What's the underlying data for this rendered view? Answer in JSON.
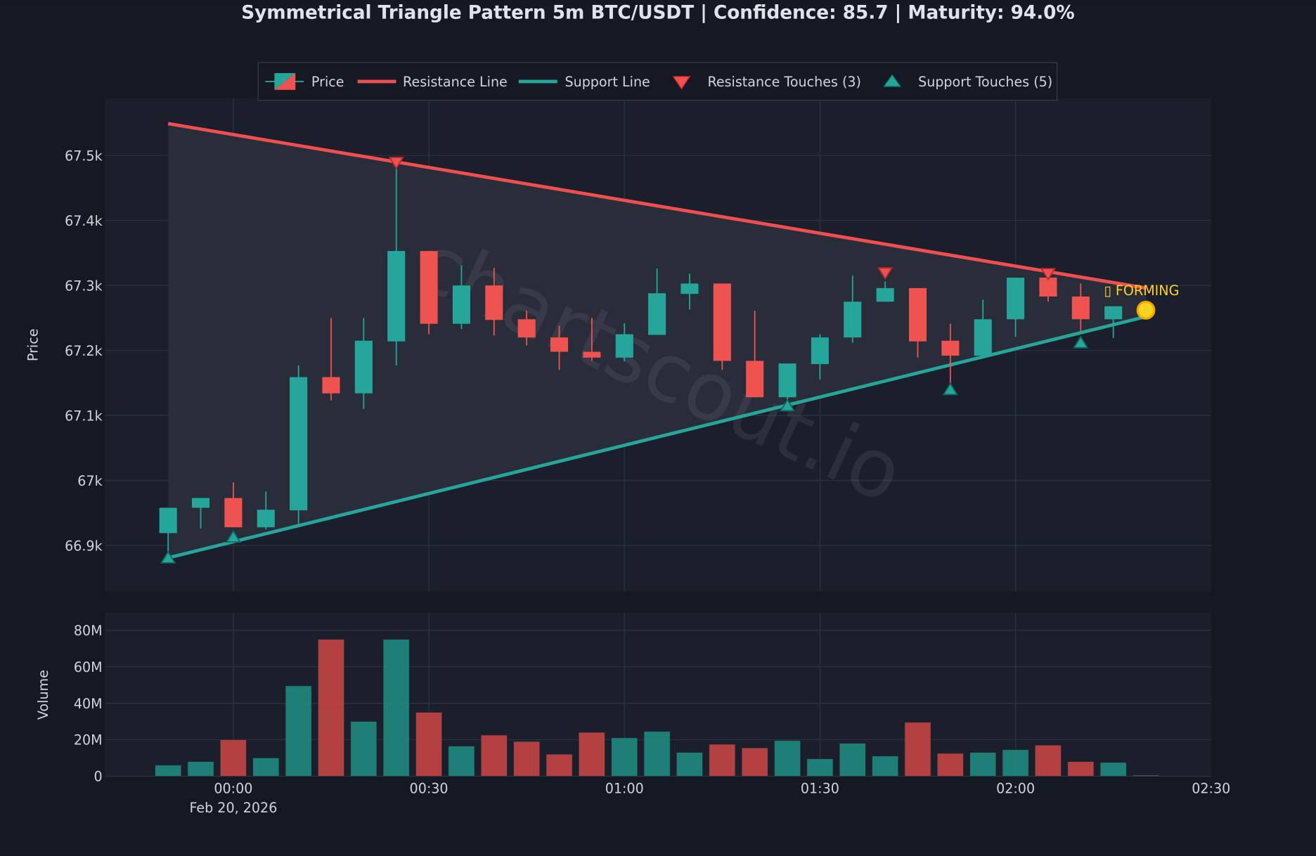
{
  "chart_data": {
    "type": "candlestick",
    "title": "Symmetrical Triangle Pattern 5m BTC/USDT | Confidence: 85.7 | Maturity: 94.0%",
    "ylabel": "Price",
    "ylabel_volume": "Volume",
    "x_ticks": [
      "00:00",
      "00:30",
      "01:00",
      "01:30",
      "02:00",
      "02:30"
    ],
    "x_date_label": "Feb 20, 2026",
    "y_ticks": [
      {
        "v": 66.9,
        "label": "66.9k"
      },
      {
        "v": 67.0,
        "label": "67k"
      },
      {
        "v": 67.1,
        "label": "67.1k"
      },
      {
        "v": 67.2,
        "label": "67.2k"
      },
      {
        "v": 67.3,
        "label": "67.3k"
      },
      {
        "v": 67.4,
        "label": "67.4k"
      },
      {
        "v": 67.5,
        "label": "67.5k"
      }
    ],
    "volume_ticks": [
      {
        "v": 0,
        "label": "0"
      },
      {
        "v": 20,
        "label": "20M"
      },
      {
        "v": 40,
        "label": "40M"
      },
      {
        "v": 60,
        "label": "60M"
      },
      {
        "v": 80,
        "label": "80M"
      }
    ],
    "price_unit": "thousand USDT",
    "volume_unit": "million",
    "ylim": [
      66.829,
      67.588
    ],
    "volume_ylim": [
      0,
      89.7
    ],
    "legend": {
      "placement": "top-center",
      "entries": [
        "Price",
        "Resistance Line",
        "Support Line",
        "Resistance Touches (3)",
        "Support Touches (5)"
      ]
    },
    "candles": [
      {
        "t": "23:50",
        "o": 66.919,
        "h": 66.958,
        "l": 66.887,
        "c": 66.958,
        "v": 6
      },
      {
        "t": "23:55",
        "o": 66.958,
        "h": 66.973,
        "l": 66.926,
        "c": 66.973,
        "v": 8
      },
      {
        "t": "00:00",
        "o": 66.973,
        "h": 66.997,
        "l": 66.928,
        "c": 66.928,
        "v": 20
      },
      {
        "t": "00:05",
        "o": 66.928,
        "h": 66.983,
        "l": 66.925,
        "c": 66.955,
        "v": 10
      },
      {
        "t": "00:10",
        "o": 66.954,
        "h": 67.177,
        "l": 66.932,
        "c": 67.159,
        "v": 49.5
      },
      {
        "t": "00:15",
        "o": 67.159,
        "h": 67.25,
        "l": 67.123,
        "c": 67.134,
        "v": 75
      },
      {
        "t": "00:20",
        "o": 67.134,
        "h": 67.25,
        "l": 67.11,
        "c": 67.215,
        "v": 30
      },
      {
        "t": "00:25",
        "o": 67.214,
        "h": 67.488,
        "l": 67.177,
        "c": 67.353,
        "v": 75
      },
      {
        "t": "00:30",
        "o": 67.353,
        "h": 67.353,
        "l": 67.225,
        "c": 67.241,
        "v": 35
      },
      {
        "t": "00:35",
        "o": 67.241,
        "h": 67.331,
        "l": 67.233,
        "c": 67.3,
        "v": 16.5
      },
      {
        "t": "00:40",
        "o": 67.3,
        "h": 67.327,
        "l": 67.223,
        "c": 67.247,
        "v": 22.5
      },
      {
        "t": "00:45",
        "o": 67.248,
        "h": 67.261,
        "l": 67.208,
        "c": 67.22,
        "v": 19
      },
      {
        "t": "00:50",
        "o": 67.22,
        "h": 67.238,
        "l": 67.17,
        "c": 67.198,
        "v": 12
      },
      {
        "t": "00:55",
        "o": 67.198,
        "h": 67.25,
        "l": 67.184,
        "c": 67.189,
        "v": 24
      },
      {
        "t": "01:00",
        "o": 67.189,
        "h": 67.242,
        "l": 67.183,
        "c": 67.225,
        "v": 21
      },
      {
        "t": "01:05",
        "o": 67.224,
        "h": 67.326,
        "l": 67.224,
        "c": 67.288,
        "v": 24.5
      },
      {
        "t": "01:10",
        "o": 67.287,
        "h": 67.318,
        "l": 67.263,
        "c": 67.303,
        "v": 13
      },
      {
        "t": "01:15",
        "o": 67.303,
        "h": 67.303,
        "l": 67.17,
        "c": 67.184,
        "v": 17.5
      },
      {
        "t": "01:20",
        "o": 67.184,
        "h": 67.261,
        "l": 67.128,
        "c": 67.128,
        "v": 15.5
      },
      {
        "t": "01:25",
        "o": 67.128,
        "h": 67.18,
        "l": 67.115,
        "c": 67.18,
        "v": 19.5
      },
      {
        "t": "01:30",
        "o": 67.179,
        "h": 67.225,
        "l": 67.155,
        "c": 67.22,
        "v": 9.5
      },
      {
        "t": "01:35",
        "o": 67.22,
        "h": 67.315,
        "l": 67.212,
        "c": 67.275,
        "v": 18
      },
      {
        "t": "01:40",
        "o": 67.275,
        "h": 67.306,
        "l": 67.275,
        "c": 67.296,
        "v": 11
      },
      {
        "t": "01:45",
        "o": 67.296,
        "h": 67.296,
        "l": 67.189,
        "c": 67.214,
        "v": 29.5
      },
      {
        "t": "01:50",
        "o": 67.215,
        "h": 67.241,
        "l": 67.149,
        "c": 67.192,
        "v": 12.5
      },
      {
        "t": "01:55",
        "o": 67.192,
        "h": 67.278,
        "l": 67.192,
        "c": 67.248,
        "v": 13
      },
      {
        "t": "02:00",
        "o": 67.248,
        "h": 67.312,
        "l": 67.221,
        "c": 67.312,
        "v": 14.5
      },
      {
        "t": "02:05",
        "o": 67.312,
        "h": 67.312,
        "l": 67.275,
        "c": 67.283,
        "v": 17
      },
      {
        "t": "02:10",
        "o": 67.283,
        "h": 67.303,
        "l": 67.229,
        "c": 67.248,
        "v": 8
      },
      {
        "t": "02:15",
        "o": 67.248,
        "h": 67.268,
        "l": 67.219,
        "c": 67.268,
        "v": 7.5
      },
      {
        "t": "02:20",
        "o": null,
        "h": null,
        "l": null,
        "c": null,
        "v": 0.5
      }
    ],
    "resistance_line": {
      "start": {
        "t": "23:50",
        "p": 67.549
      },
      "end": {
        "t": "02:20",
        "p": 67.296
      }
    },
    "support_line": {
      "start": {
        "t": "23:50",
        "p": 66.881
      },
      "end": {
        "t": "02:20",
        "p": 67.252
      }
    },
    "resistance_touches": [
      {
        "t": "00:25",
        "p": 67.488
      },
      {
        "t": "01:40",
        "p": 67.318
      },
      {
        "t": "02:05",
        "p": 67.317
      }
    ],
    "support_touches": [
      {
        "t": "23:50",
        "p": 66.881
      },
      {
        "t": "00:00",
        "p": 66.913
      },
      {
        "t": "01:25",
        "p": 67.115
      },
      {
        "t": "01:50",
        "p": 67.14
      },
      {
        "t": "02:10",
        "p": 67.212
      }
    ],
    "apex_marker": {
      "t": "02:20",
      "p": 67.262,
      "label": "▯ FORMING"
    },
    "watermark": "chartscout.io"
  },
  "colors": {
    "up": "#26a69a",
    "down": "#ef5350",
    "resistance": "#ef4f4f",
    "support": "#26a69a",
    "apex": "#ffd21f",
    "forming_label": "#ffd21f"
  }
}
